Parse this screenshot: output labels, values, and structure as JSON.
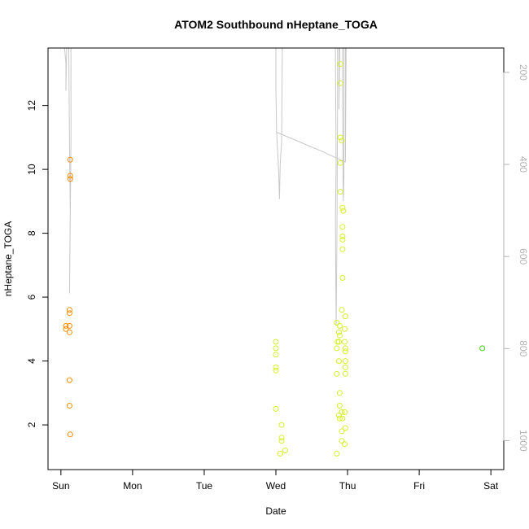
{
  "chart_data": {
    "type": "scatter",
    "title": "ATOM2 Southbound nHeptane_TOGA",
    "xlabel": "Date",
    "ylabel": "nHeptane_TOGA",
    "x_ticks": [
      {
        "label": "Sun",
        "day": 0
      },
      {
        "label": "Mon",
        "day": 1
      },
      {
        "label": "Tue",
        "day": 2
      },
      {
        "label": "Wed",
        "day": 3
      },
      {
        "label": "Thu",
        "day": 4
      },
      {
        "label": "Fri",
        "day": 5
      },
      {
        "label": "Sat",
        "day": 6
      }
    ],
    "xlim_days": [
      -0.18,
      6.18
    ],
    "ylim": [
      0.6,
      13.8
    ],
    "y_ticks": [
      2,
      4,
      6,
      8,
      10,
      12
    ],
    "y_tick_labels": [
      "2",
      "4",
      "6",
      "8",
      "10",
      "12"
    ],
    "right_axis": {
      "ticks": [
        200,
        400,
        600,
        800,
        1000
      ],
      "tick_labels": [
        "200",
        "400",
        "600",
        "800",
        "1000"
      ],
      "ylim": [
        1063,
        147
      ],
      "color": "#b3b3b3"
    },
    "grid": false,
    "series": [
      {
        "color": "#ff8c00",
        "points": [
          [
            0.07,
            5.1
          ],
          [
            0.07,
            5.0
          ],
          [
            0.12,
            5.6
          ],
          [
            0.12,
            5.5
          ],
          [
            0.12,
            5.1
          ],
          [
            0.12,
            4.9
          ],
          [
            0.13,
            10.3
          ],
          [
            0.13,
            9.8
          ],
          [
            0.13,
            9.7
          ],
          [
            0.12,
            3.4
          ],
          [
            0.12,
            2.6
          ],
          [
            0.13,
            1.7
          ]
        ]
      },
      {
        "color": "#d7f028",
        "points": [
          [
            3.0,
            4.6
          ],
          [
            3.0,
            4.4
          ],
          [
            3.0,
            4.2
          ],
          [
            3.0,
            3.8
          ],
          [
            3.0,
            3.7
          ],
          [
            3.0,
            2.5
          ],
          [
            3.08,
            2.0
          ],
          [
            3.08,
            1.6
          ],
          [
            3.08,
            1.5
          ],
          [
            3.06,
            1.1
          ],
          [
            3.13,
            1.2
          ],
          [
            3.85,
            5.2
          ],
          [
            3.86,
            4.6
          ],
          [
            3.85,
            4.4
          ],
          [
            3.85,
            3.6
          ],
          [
            3.85,
            1.1
          ],
          [
            3.9,
            13.3
          ],
          [
            3.9,
            12.7
          ],
          [
            3.9,
            11.0
          ],
          [
            3.92,
            10.9
          ],
          [
            3.9,
            10.2
          ],
          [
            3.9,
            9.3
          ],
          [
            3.93,
            8.8
          ],
          [
            3.94,
            8.7
          ],
          [
            3.93,
            8.2
          ],
          [
            3.93,
            7.9
          ],
          [
            3.93,
            7.8
          ],
          [
            3.93,
            7.5
          ],
          [
            3.93,
            6.6
          ],
          [
            3.92,
            5.6
          ],
          [
            3.97,
            5.4
          ],
          [
            3.96,
            5.0
          ],
          [
            3.89,
            5.1
          ],
          [
            3.88,
            4.9
          ],
          [
            3.89,
            4.8
          ],
          [
            3.88,
            4.6
          ],
          [
            3.96,
            4.6
          ],
          [
            3.97,
            4.4
          ],
          [
            3.97,
            4.3
          ],
          [
            3.88,
            4.0
          ],
          [
            3.97,
            4.0
          ],
          [
            3.97,
            3.8
          ],
          [
            3.97,
            3.6
          ],
          [
            3.89,
            3.0
          ],
          [
            3.89,
            2.6
          ],
          [
            3.92,
            2.4
          ],
          [
            3.96,
            2.4
          ],
          [
            3.88,
            2.3
          ],
          [
            3.89,
            2.2
          ],
          [
            3.93,
            2.2
          ],
          [
            3.97,
            1.9
          ],
          [
            3.92,
            1.8
          ],
          [
            3.92,
            1.5
          ],
          [
            3.96,
            1.4
          ]
        ]
      },
      {
        "color": "#4ccd14",
        "points": [
          [
            5.88,
            4.4
          ]
        ]
      }
    ],
    "altitude_line": {
      "color": "#c8c8c8",
      "segments": [
        [
          [
            0.05,
            147
          ],
          [
            0.07,
            180
          ],
          [
            0.07,
            240
          ],
          [
            0.08,
            147
          ]
        ],
        [
          [
            0.11,
            147
          ],
          [
            0.12,
            360
          ],
          [
            0.13,
            500
          ],
          [
            0.12,
            680
          ],
          [
            0.13,
            520
          ],
          [
            0.14,
            350
          ],
          [
            0.14,
            147
          ]
        ],
        [
          [
            3.0,
            147
          ],
          [
            3.0,
            240
          ],
          [
            3.01,
            330
          ],
          [
            3.02,
            360
          ],
          [
            3.04,
            420
          ],
          [
            3.05,
            475
          ],
          [
            3.06,
            400
          ],
          [
            3.08,
            350
          ],
          [
            3.09,
            147
          ]
        ],
        [
          [
            3.01,
            330
          ],
          [
            3.62,
            370
          ],
          [
            3.97,
            395
          ]
        ],
        [
          [
            3.83,
            147
          ],
          [
            3.84,
            400
          ],
          [
            3.83,
            520
          ],
          [
            3.84,
            750
          ],
          [
            3.85,
            600
          ],
          [
            3.86,
            300
          ],
          [
            3.86,
            147
          ]
        ],
        [
          [
            3.88,
            147
          ],
          [
            3.88,
            280
          ],
          [
            3.89,
            147
          ]
        ],
        [
          [
            3.93,
            147
          ],
          [
            3.93,
            250
          ],
          [
            3.94,
            480
          ],
          [
            3.95,
            430
          ],
          [
            3.95,
            147
          ]
        ],
        [
          [
            3.97,
            147
          ],
          [
            3.97,
            300
          ],
          [
            3.97,
            395
          ],
          [
            3.98,
            147
          ]
        ]
      ]
    }
  }
}
